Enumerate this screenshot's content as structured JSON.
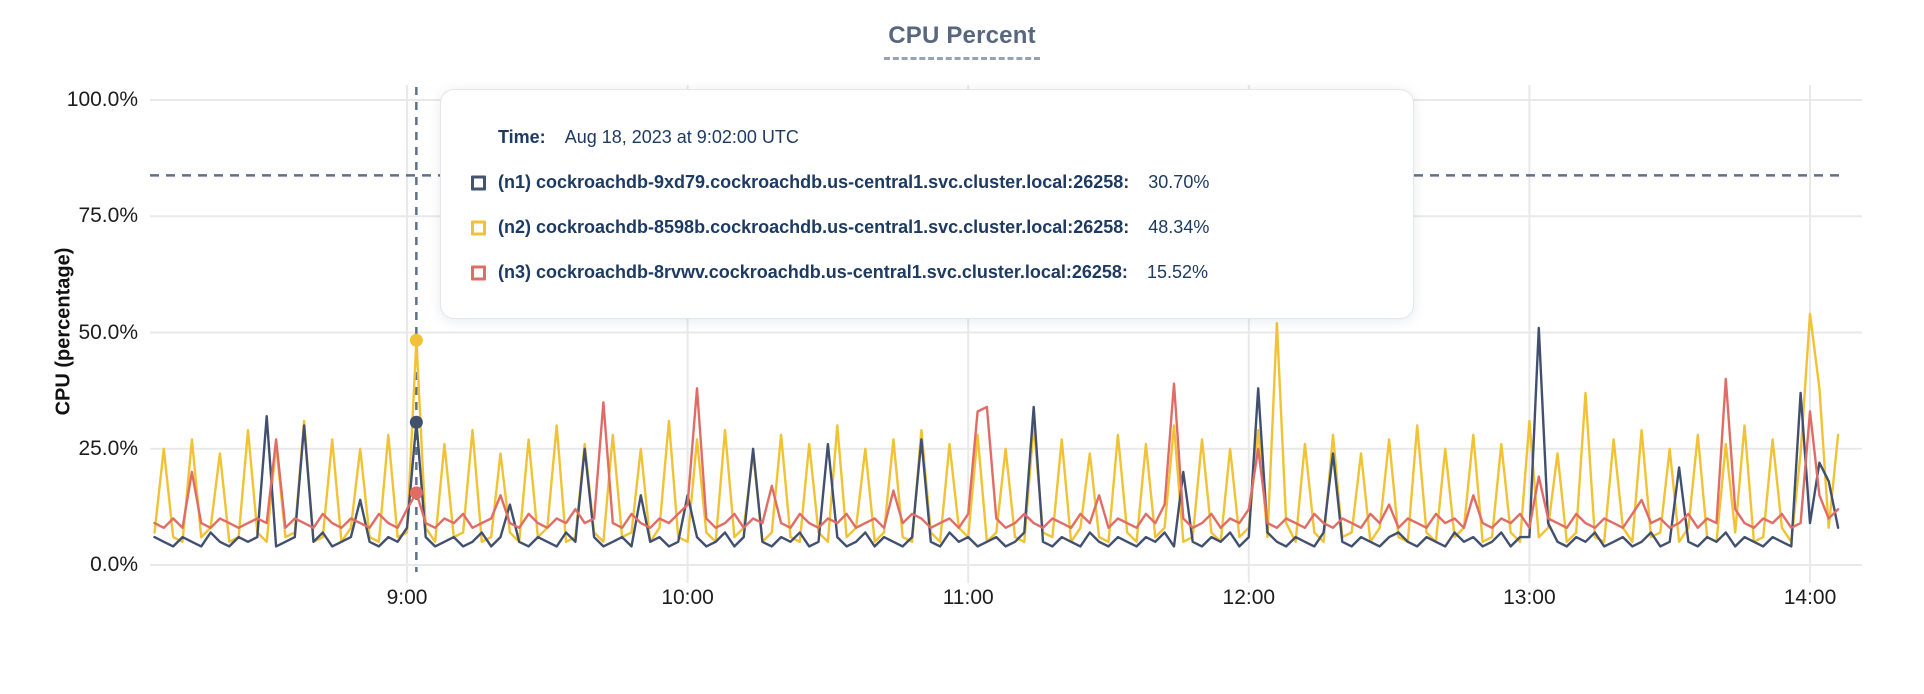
{
  "title": "CPU Percent",
  "tooltip": {
    "time_label": "Time:",
    "time_value": "Aug 18, 2023 at 9:02:00 UTC",
    "rows": [
      {
        "label": "(n1) cockroachdb-9xd79.cockroachdb.us-central1.svc.cluster.local:26258:",
        "value": "30.70%",
        "color": "#44536f"
      },
      {
        "label": "(n2) cockroachdb-8598b.cockroachdb.us-central1.svc.cluster.local:26258:",
        "value": "48.34%",
        "color": "#f0c23c"
      },
      {
        "label": "(n3) cockroachdb-8rvwv.cockroachdb.us-central1.svc.cluster.local:26258:",
        "value": "15.52%",
        "color": "#e06d65"
      }
    ]
  },
  "chart_data": {
    "type": "line",
    "title": "CPU Percent",
    "xlabel": "",
    "ylabel": "CPU (percentage)",
    "ylim": [
      0,
      100
    ],
    "grid": true,
    "legend_position": "tooltip-only",
    "y_ticks": [
      {
        "pct": 0,
        "label": "0.0%"
      },
      {
        "pct": 25,
        "label": "25.0%"
      },
      {
        "pct": 50,
        "label": "50.0%"
      },
      {
        "pct": 75,
        "label": "75.0%"
      },
      {
        "pct": 100,
        "label": "100.0%"
      }
    ],
    "x_ticks": [
      {
        "hour": 9,
        "label": "9:00"
      },
      {
        "hour": 10,
        "label": "10:00"
      },
      {
        "hour": 11,
        "label": "11:00"
      },
      {
        "hour": 12,
        "label": "12:00"
      },
      {
        "hour": 13,
        "label": "13:00"
      },
      {
        "hour": 14,
        "label": "14:00"
      }
    ],
    "x_start_hour": 8.1,
    "x_step_hours": 0.0333333,
    "threshold_line_pct": 83.8,
    "hover": {
      "hour": 9.0333,
      "time": "Aug 18, 2023 at 9:02:00 UTC",
      "dots": [
        {
          "series": "n2",
          "value": 48.34
        },
        {
          "series": "n1",
          "value": 30.7
        },
        {
          "series": "n3",
          "value": 15.52
        }
      ]
    },
    "series": [
      {
        "name": "(n2) cockroachdb-8598b.cockroachdb.us-central1.svc.cluster.local:26258",
        "short": "n2",
        "color": "#f2c235",
        "values": [
          7,
          25,
          6,
          5,
          27,
          6,
          8,
          24,
          5,
          6,
          29,
          7,
          5,
          26,
          6,
          7,
          31,
          5,
          6,
          27,
          5,
          8,
          25,
          6,
          5,
          28,
          6,
          7,
          48.34,
          8,
          5,
          26,
          6,
          7,
          29,
          5,
          6,
          24,
          7,
          5,
          27,
          6,
          8,
          30,
          5,
          6,
          26,
          7,
          5,
          28,
          6,
          7,
          25,
          5,
          8,
          31,
          6,
          5,
          27,
          7,
          5,
          29,
          6,
          8,
          24,
          5,
          7,
          28,
          6,
          5,
          26,
          7,
          5,
          30,
          6,
          8,
          25,
          5,
          7,
          27,
          6,
          5,
          29,
          7,
          5,
          26,
          8,
          6,
          28,
          5,
          7,
          25,
          6,
          5,
          30,
          7,
          6,
          27,
          5,
          8,
          24,
          6,
          5,
          28,
          7,
          5,
          26,
          6,
          8,
          30,
          5,
          6,
          27,
          7,
          5,
          25,
          6,
          8,
          29,
          6,
          52,
          9,
          5,
          26,
          7,
          5,
          28,
          6,
          7,
          24,
          5,
          8,
          27,
          6,
          5,
          30,
          7,
          5,
          25,
          6,
          8,
          28,
          5,
          6,
          26,
          7,
          5,
          31,
          6,
          8,
          24,
          5,
          7,
          37,
          6,
          5,
          27,
          8,
          5,
          29,
          6,
          7,
          25,
          5,
          8,
          28,
          6,
          5,
          26,
          7,
          30,
          5,
          6,
          27,
          8,
          5,
          24,
          54,
          38,
          8,
          28
        ]
      },
      {
        "name": "(n1) cockroachdb-9xd79.cockroachdb.us-central1.svc.cluster.local:26258",
        "short": "n1",
        "color": "#41506e",
        "values": [
          6,
          5,
          4,
          6,
          5,
          4,
          7,
          5,
          4,
          6,
          5,
          6,
          32,
          4,
          5,
          6,
          30,
          5,
          7,
          4,
          5,
          6,
          14,
          5,
          4,
          6,
          5,
          8,
          30.7,
          6,
          4,
          5,
          6,
          4,
          5,
          7,
          4,
          6,
          13,
          5,
          4,
          6,
          5,
          4,
          7,
          5,
          25,
          6,
          4,
          5,
          6,
          4,
          15,
          5,
          6,
          4,
          5,
          15,
          6,
          4,
          5,
          7,
          4,
          6,
          25,
          5,
          4,
          6,
          5,
          7,
          4,
          5,
          26,
          6,
          4,
          5,
          7,
          4,
          6,
          5,
          4,
          6,
          27,
          5,
          4,
          7,
          5,
          6,
          4,
          5,
          6,
          4,
          5,
          7,
          34,
          5,
          4,
          6,
          5,
          4,
          7,
          5,
          4,
          6,
          5,
          4,
          6,
          5,
          7,
          4,
          20,
          5,
          4,
          6,
          5,
          7,
          4,
          6,
          38,
          7,
          5,
          4,
          6,
          5,
          4,
          7,
          24,
          5,
          4,
          6,
          5,
          4,
          6,
          7,
          5,
          4,
          6,
          5,
          4,
          7,
          5,
          6,
          4,
          5,
          7,
          4,
          6,
          6,
          51,
          9,
          5,
          4,
          6,
          5,
          7,
          4,
          5,
          6,
          4,
          5,
          7,
          4,
          5,
          21,
          5,
          4,
          6,
          5,
          7,
          4,
          6,
          5,
          4,
          6,
          5,
          4,
          37,
          9,
          22,
          18,
          8
        ]
      },
      {
        "name": "(n3) cockroachdb-8rvwv.cockroachdb.us-central1.svc.cluster.local:26258",
        "short": "n3",
        "color": "#e06d65",
        "values": [
          9,
          8,
          10,
          8,
          20,
          9,
          8,
          10,
          9,
          8,
          9,
          10,
          9,
          27,
          8,
          10,
          9,
          8,
          11,
          9,
          8,
          10,
          9,
          8,
          11,
          9,
          8,
          12,
          15.52,
          9,
          8,
          10,
          9,
          11,
          8,
          9,
          10,
          15,
          9,
          8,
          11,
          9,
          8,
          10,
          9,
          12,
          9,
          10,
          35,
          9,
          8,
          11,
          9,
          8,
          10,
          9,
          11,
          13,
          38,
          10,
          8,
          9,
          11,
          8,
          10,
          9,
          17,
          9,
          8,
          11,
          9,
          8,
          10,
          9,
          11,
          8,
          9,
          10,
          8,
          16,
          9,
          11,
          10,
          8,
          9,
          10,
          8,
          11,
          33,
          34,
          10,
          8,
          9,
          11,
          9,
          8,
          10,
          9,
          8,
          11,
          9,
          15,
          8,
          10,
          9,
          8,
          11,
          9,
          13,
          39,
          10,
          8,
          9,
          11,
          8,
          10,
          9,
          12,
          25,
          9,
          8,
          10,
          9,
          8,
          11,
          9,
          8,
          10,
          9,
          8,
          11,
          9,
          13,
          8,
          10,
          9,
          8,
          11,
          9,
          10,
          8,
          15,
          9,
          8,
          10,
          9,
          11,
          8,
          19,
          10,
          9,
          8,
          11,
          9,
          8,
          10,
          9,
          8,
          11,
          14,
          9,
          10,
          8,
          9,
          11,
          8,
          10,
          9,
          40,
          12,
          9,
          8,
          10,
          9,
          11,
          8,
          9,
          33,
          15,
          10,
          12
        ]
      }
    ],
    "colors": {
      "gridline": "#e9e9e9",
      "guide": "#5d7289",
      "axis_text": "#1c1c1c",
      "title": "#57677f"
    }
  }
}
